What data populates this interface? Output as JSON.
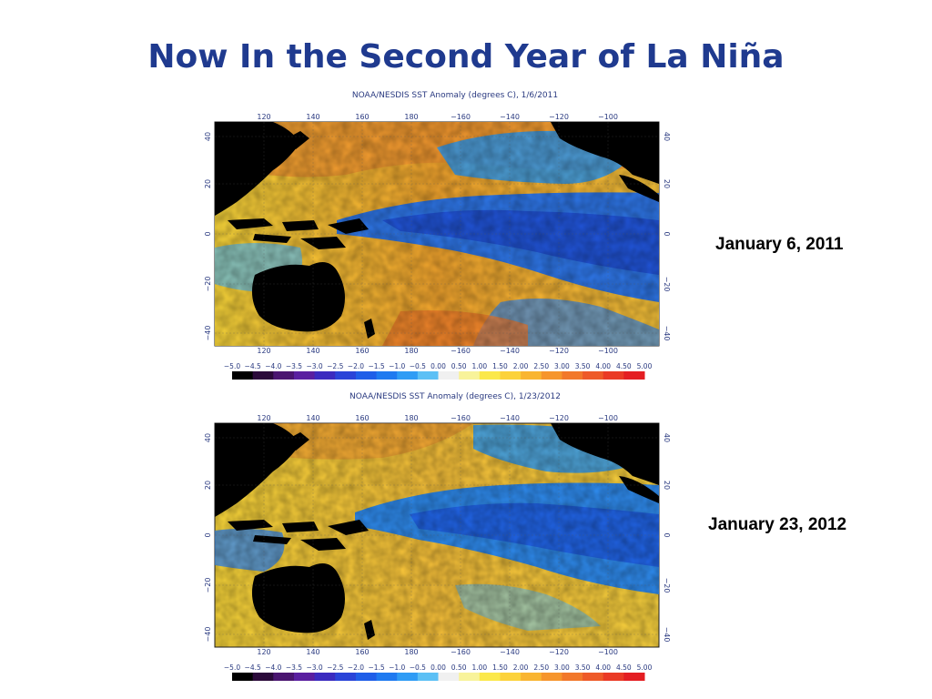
{
  "slide": {
    "title": "Now In the Second Year of La Niña"
  },
  "maps": [
    {
      "title": "NOAA/NESDIS SST Anomaly (degrees C), 1/6/2011",
      "caption": "January 6, 2011",
      "lon_ticks": [
        "120",
        "140",
        "160",
        "180",
        "−160",
        "−140",
        "−120",
        "−100"
      ],
      "lat_ticks": [
        "40",
        "20",
        "0",
        "−20",
        "−40"
      ],
      "colorbar_labels": [
        "−5.0",
        "−4.5",
        "−4.0",
        "−3.5",
        "−3.0",
        "−2.5",
        "−2.0",
        "−1.5",
        "−1.0",
        "−0.5",
        "0.00",
        "0.50",
        "1.00",
        "1.50",
        "2.00",
        "2.50",
        "3.00",
        "3.50",
        "4.00",
        "4.50",
        "5.00"
      ]
    },
    {
      "title": "NOAA/NESDIS SST Anomaly (degrees C), 1/23/2012",
      "caption": "January 23, 2012",
      "lon_ticks": [
        "120",
        "140",
        "160",
        "180",
        "−160",
        "−140",
        "−120",
        "−100"
      ],
      "lat_ticks": [
        "40",
        "20",
        "0",
        "−20",
        "−40"
      ],
      "colorbar_labels": [
        "−5.0",
        "−4.5",
        "−4.0",
        "−3.5",
        "−3.0",
        "−2.5",
        "−2.0",
        "−1.5",
        "−1.0",
        "−0.5",
        "0.00",
        "0.50",
        "1.00",
        "1.50",
        "2.00",
        "2.50",
        "3.00",
        "3.50",
        "4.00",
        "4.50",
        "5.00"
      ]
    }
  ],
  "colors": {
    "title": "#1f3a8f",
    "colorbar": [
      "#000000",
      "#2b0a3a",
      "#4a1570",
      "#5a1fa0",
      "#3b2bbf",
      "#2a44d8",
      "#1f5ee8",
      "#1f7af0",
      "#2f9cf5",
      "#5cc0f5",
      "#f0f0f0",
      "#f8f39a",
      "#fbe84a",
      "#fcd23a",
      "#f9b531",
      "#f6952c",
      "#f2782a",
      "#ee5a28",
      "#ea3a25",
      "#e41e22"
    ],
    "land": "#000000"
  },
  "legend": {
    "units": "degrees C"
  }
}
